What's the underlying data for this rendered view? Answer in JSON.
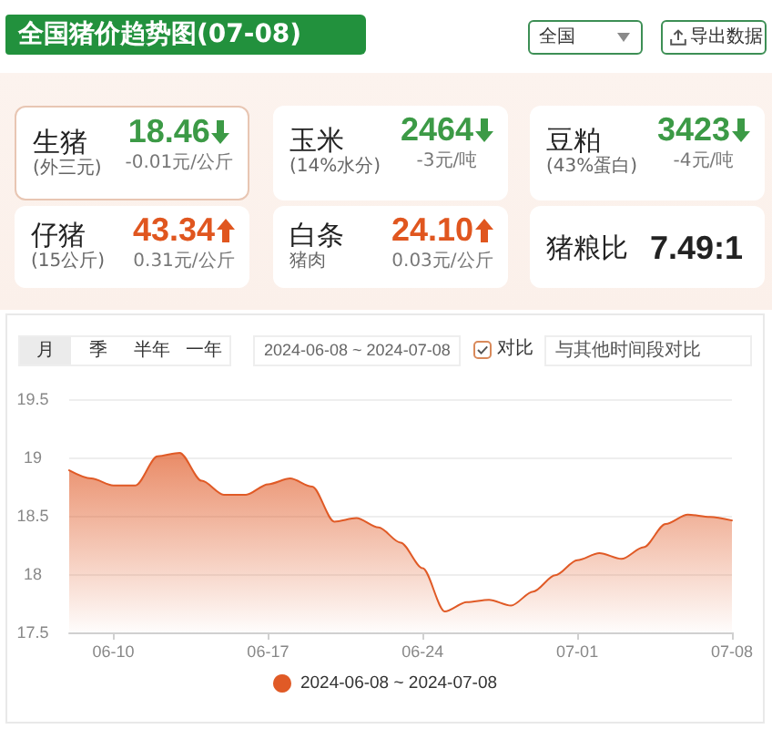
{
  "chart_data": [
    {
      "type": "other",
      "title": "全国猪价趋势图(07-08)",
      "categories": [
        "生猪",
        "玉米",
        "豆粕",
        "仔猪",
        "白条",
        "猪粮比"
      ],
      "value_labels": [
        "18.46",
        "2464",
        "3423",
        "43.34",
        "24.10",
        "7.49:1"
      ],
      "annotations": [
        "全国",
        "导出数据",
        "(外三元)",
        "-0.01元/公斤",
        "(14%水分)",
        "-3元/吨",
        "(43%蛋白)",
        "-4元/吨",
        "(15公斤)",
        "0.31元/公斤",
        "猪肉",
        "0.03元/公斤"
      ]
    },
    {
      "type": "area",
      "x": [
        "2024-06-08",
        "2024-06-09",
        "2024-06-10",
        "2024-06-11",
        "2024-06-12",
        "2024-06-13",
        "2024-06-14",
        "2024-06-15",
        "2024-06-16",
        "2024-06-17",
        "2024-06-18",
        "2024-06-19",
        "2024-06-20",
        "2024-06-21",
        "2024-06-22",
        "2024-06-23",
        "2024-06-24",
        "2024-06-25",
        "2024-06-26",
        "2024-06-27",
        "2024-06-28",
        "2024-06-29",
        "2024-06-30",
        "2024-07-01",
        "2024-07-02",
        "2024-07-03",
        "2024-07-04",
        "2024-07-05",
        "2024-07-06",
        "2024-07-07",
        "2024-07-08"
      ],
      "series": [
        {
          "name": "2024-06-08 ~ 2024-07-08",
          "color": "#e05a26",
          "values": [
            18.89,
            18.82,
            18.76,
            18.76,
            19.01,
            19.04,
            18.8,
            18.68,
            18.68,
            18.77,
            18.82,
            18.75,
            18.45,
            18.48,
            18.4,
            18.27,
            18.05,
            17.68,
            17.76,
            17.78,
            17.73,
            17.85,
            17.99,
            18.12,
            18.18,
            18.13,
            18.23,
            18.43,
            18.51,
            18.49,
            18.46
          ]
        }
      ],
      "xlim": [
        "2024-06-08",
        "2024-07-08"
      ],
      "xticks": [
        {
          "value": "2024-06-10",
          "label": "06-10"
        },
        {
          "value": "2024-06-17",
          "label": "06-17"
        },
        {
          "value": "2024-06-24",
          "label": "06-24"
        },
        {
          "value": "2024-07-01",
          "label": "07-01"
        },
        {
          "value": "2024-07-08",
          "label": "07-08"
        }
      ],
      "ylim": [
        17.5,
        19.5
      ],
      "yticks": [
        17.5,
        18,
        18.5,
        19,
        19.5
      ],
      "grid": "y",
      "legend": "bottom",
      "marker": "none",
      "line_style": "solid",
      "annotations": [
        "月",
        "季",
        "半年",
        "一年",
        "2024-06-08 ~ 2024-07-08",
        "对比",
        "与其他时间段对比"
      ]
    }
  ]
}
